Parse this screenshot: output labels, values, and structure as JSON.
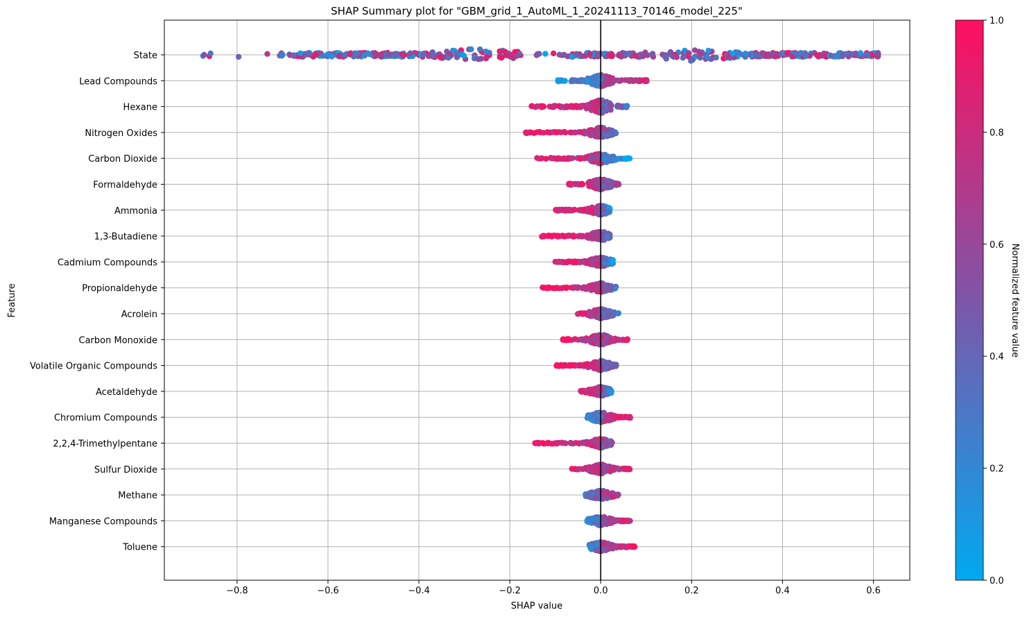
{
  "chart_data": {
    "type": "scatter",
    "title": "SHAP Summary plot for \"GBM_grid_1_AutoML_1_20241113_70146_model_225\"",
    "xlabel": "SHAP value",
    "ylabel": "Feature",
    "xlim": [
      -0.96,
      0.68
    ],
    "x_ticks": [
      "−0.8",
      "−0.6",
      "−0.4",
      "−0.2",
      "0.0",
      "0.2",
      "0.4",
      "0.6"
    ],
    "x_tick_values": [
      -0.8,
      -0.6,
      -0.4,
      -0.2,
      0.0,
      0.2,
      0.4,
      0.6
    ],
    "grid": true,
    "zero_line": true,
    "colorbar": {
      "label": "Normalized feature value",
      "range": [
        0.0,
        1.0
      ],
      "ticks": [
        "0.0",
        "0.2",
        "0.4",
        "0.6",
        "0.8",
        "1.0"
      ],
      "tick_values": [
        0.0,
        0.2,
        0.4,
        0.6,
        0.8,
        1.0
      ],
      "color_low": "#00a9f0",
      "color_mid": "#7e56a8",
      "color_high": "#ff0f5f"
    },
    "features": [
      {
        "name": "State",
        "min": -0.9,
        "max": 0.61,
        "spread": 12,
        "left_color": 0.55,
        "right_color": 0.55
      },
      {
        "name": "Lead Compounds",
        "min": -0.095,
        "max": 0.105,
        "spread": 9,
        "left_color": 0.15,
        "right_color": 0.9
      },
      {
        "name": "Hexane",
        "min": -0.155,
        "max": 0.06,
        "spread": 10,
        "left_color": 0.92,
        "right_color": 0.35
      },
      {
        "name": "Nitrogen Oxides",
        "min": -0.17,
        "max": 0.035,
        "spread": 8,
        "left_color": 0.92,
        "right_color": 0.4
      },
      {
        "name": "Carbon Dioxide",
        "min": -0.145,
        "max": 0.065,
        "spread": 8,
        "left_color": 0.92,
        "right_color": 0.05
      },
      {
        "name": "Formaldehyde",
        "min": -0.07,
        "max": 0.04,
        "spread": 8,
        "left_color": 0.9,
        "right_color": 0.6
      },
      {
        "name": "Ammonia",
        "min": -0.1,
        "max": 0.02,
        "spread": 7,
        "left_color": 0.92,
        "right_color": 0.1
      },
      {
        "name": "1,3-Butadiene",
        "min": -0.13,
        "max": 0.02,
        "spread": 7,
        "left_color": 0.95,
        "right_color": 0.35
      },
      {
        "name": "Cadmium Compounds",
        "min": -0.1,
        "max": 0.03,
        "spread": 7,
        "left_color": 0.92,
        "right_color": 0.1
      },
      {
        "name": "Propionaldehyde",
        "min": -0.13,
        "max": 0.04,
        "spread": 7,
        "left_color": 0.92,
        "right_color": 0.35
      },
      {
        "name": "Acrolein",
        "min": -0.055,
        "max": 0.04,
        "spread": 7,
        "left_color": 0.85,
        "right_color": 0.35
      },
      {
        "name": "Carbon Monoxide",
        "min": -0.085,
        "max": 0.06,
        "spread": 8,
        "left_color": 0.92,
        "right_color": 0.9
      },
      {
        "name": "Volatile Organic Compounds",
        "min": -0.1,
        "max": 0.035,
        "spread": 7,
        "left_color": 0.92,
        "right_color": 0.35
      },
      {
        "name": "Acetaldehyde",
        "min": -0.045,
        "max": 0.025,
        "spread": 7,
        "left_color": 0.85,
        "right_color": 0.2
      },
      {
        "name": "Chromium Compounds",
        "min": -0.03,
        "max": 0.065,
        "spread": 8,
        "left_color": 0.15,
        "right_color": 0.95
      },
      {
        "name": "2,2,4-Trimethylpentane",
        "min": -0.145,
        "max": 0.025,
        "spread": 7,
        "left_color": 0.95,
        "right_color": 0.5
      },
      {
        "name": "Sulfur Dioxide",
        "min": -0.065,
        "max": 0.065,
        "spread": 7,
        "left_color": 0.9,
        "right_color": 0.85
      },
      {
        "name": "Methane",
        "min": -0.035,
        "max": 0.04,
        "spread": 7,
        "left_color": 0.35,
        "right_color": 0.7
      },
      {
        "name": "Manganese Compounds",
        "min": -0.03,
        "max": 0.065,
        "spread": 7,
        "left_color": 0.15,
        "right_color": 0.9
      },
      {
        "name": "Toluene",
        "min": -0.025,
        "max": 0.075,
        "spread": 7,
        "left_color": 0.3,
        "right_color": 0.95
      }
    ]
  }
}
